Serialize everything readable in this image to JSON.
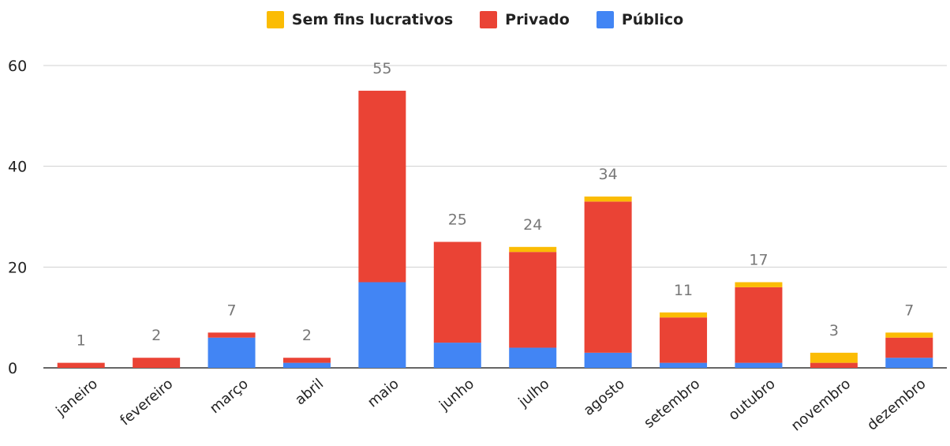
{
  "colors": {
    "sem_fins": "#FBBC04",
    "privado": "#EA4335",
    "publico": "#4285F4"
  },
  "legend": [
    {
      "label": "Sem fins lucrativos",
      "color": "#FBBC04"
    },
    {
      "label": "Privado",
      "color": "#EA4335"
    },
    {
      "label": "Público",
      "color": "#4285F4"
    }
  ],
  "chart_data": {
    "type": "bar",
    "stacked": true,
    "categories": [
      "janeiro",
      "fevereiro",
      "março",
      "abril",
      "maio",
      "junho",
      "julho",
      "agosto",
      "setembro",
      "outubro",
      "novembro",
      "dezembro"
    ],
    "series": [
      {
        "name": "Público",
        "color": "#4285F4",
        "values": [
          0,
          0,
          6,
          1,
          17,
          5,
          4,
          3,
          1,
          1,
          0,
          2
        ]
      },
      {
        "name": "Privado",
        "color": "#EA4335",
        "values": [
          1,
          2,
          1,
          1,
          38,
          20,
          19,
          30,
          9,
          15,
          1,
          4
        ]
      },
      {
        "name": "Sem fins lucrativos",
        "color": "#FBBC04",
        "values": [
          0,
          0,
          0,
          0,
          0,
          0,
          1,
          1,
          1,
          1,
          2,
          1
        ]
      }
    ],
    "totals": [
      1,
      2,
      7,
      2,
      55,
      25,
      24,
      34,
      11,
      17,
      3,
      7
    ],
    "ylim": [
      0,
      60
    ],
    "yticks": [
      0,
      20,
      40,
      60
    ],
    "grid": true,
    "legend_position": "top"
  }
}
